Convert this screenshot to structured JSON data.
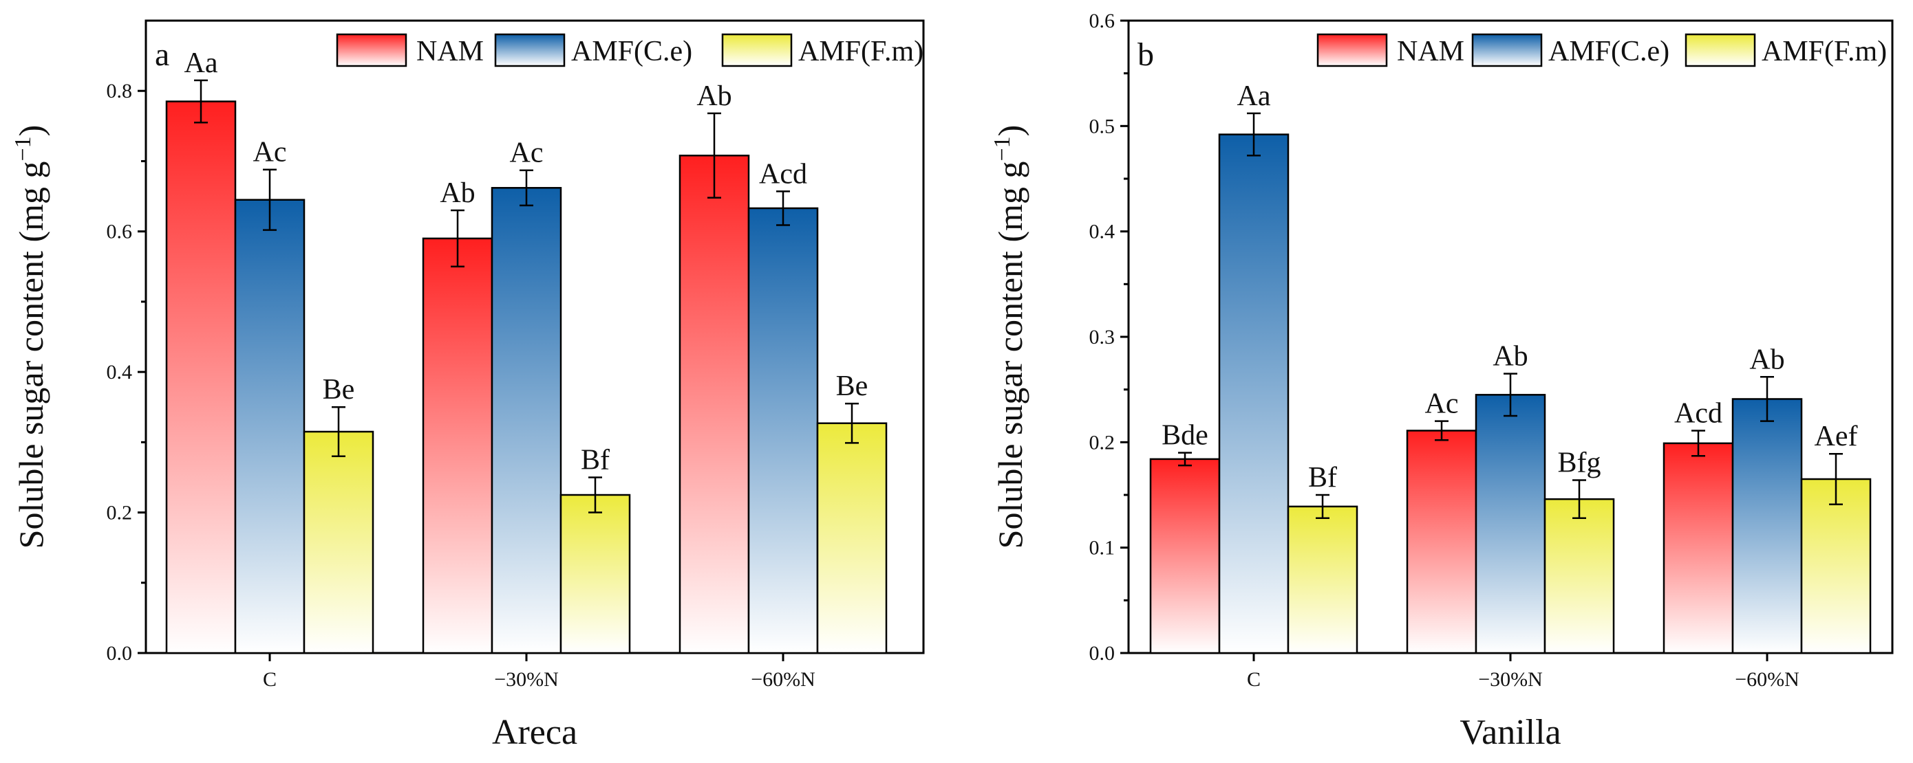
{
  "series_styles": [
    {
      "name": "NAM",
      "color_top": "#ff1f1f",
      "color_bottom": "#ffffff"
    },
    {
      "name": "AMF(C.e)",
      "color_top": "#0e5fa8",
      "color_bottom": "#ffffff"
    },
    {
      "name": "AMF(F.m)",
      "color_top": "#ecea3c",
      "color_bottom": "#ffffff"
    }
  ],
  "chart_data": [
    {
      "type": "bar",
      "panel_label": "a",
      "title": "",
      "xlabel": "Areca",
      "ylabel_main": "Soluble sugar content (mg g",
      "ylabel_sup": "−1",
      "ylabel_close": ")",
      "categories": [
        "C",
        "−30%N",
        "−60%N"
      ],
      "ylim": [
        0,
        0.9
      ],
      "yticks": [
        "0.0",
        "0.2",
        "0.4",
        "0.6",
        "0.8"
      ],
      "ytick_values": [
        0,
        0.2,
        0.4,
        0.6,
        0.8
      ],
      "legend": [
        "NAM",
        "AMF(C.e)",
        "AMF(F.m)"
      ],
      "series": [
        {
          "name": "NAM",
          "values": [
            0.785,
            0.59,
            0.708
          ],
          "errors": [
            0.03,
            0.04,
            0.06
          ],
          "labels": [
            "Aa",
            "Ab",
            "Ab"
          ]
        },
        {
          "name": "AMF(C.e)",
          "values": [
            0.645,
            0.662,
            0.633
          ],
          "errors": [
            0.043,
            0.025,
            0.024
          ],
          "labels": [
            "Ac",
            "Ac",
            "Acd"
          ]
        },
        {
          "name": "AMF(F.m)",
          "values": [
            0.315,
            0.225,
            0.327
          ],
          "errors": [
            0.035,
            0.025,
            0.028
          ],
          "labels": [
            "Be",
            "Bf",
            "Be"
          ]
        }
      ]
    },
    {
      "type": "bar",
      "panel_label": "b",
      "title": "",
      "xlabel": "Vanilla",
      "ylabel_main": "Soluble sugar content (mg g",
      "ylabel_sup": "−1",
      "ylabel_close": ")",
      "categories": [
        "C",
        "−30%N",
        "−60%N"
      ],
      "ylim": [
        0,
        0.6
      ],
      "yticks": [
        "0.0",
        "0.1",
        "0.2",
        "0.3",
        "0.4",
        "0.5",
        "0.6"
      ],
      "ytick_values": [
        0,
        0.1,
        0.2,
        0.3,
        0.4,
        0.5,
        0.6
      ],
      "legend": [
        "NAM",
        "AMF(C.e)",
        "AMF(F.m)"
      ],
      "series": [
        {
          "name": "NAM",
          "values": [
            0.184,
            0.211,
            0.199
          ],
          "errors": [
            0.006,
            0.009,
            0.012
          ],
          "labels": [
            "Bde",
            "Ac",
            "Acd"
          ]
        },
        {
          "name": "AMF(C.e)",
          "values": [
            0.492,
            0.245,
            0.241
          ],
          "errors": [
            0.02,
            0.02,
            0.021
          ],
          "labels": [
            "Aa",
            "Ab",
            "Ab"
          ]
        },
        {
          "name": "AMF(F.m)",
          "values": [
            0.139,
            0.146,
            0.165
          ],
          "errors": [
            0.011,
            0.018,
            0.024
          ],
          "labels": [
            "Bf",
            "Bfg",
            "Aef"
          ]
        }
      ]
    }
  ]
}
